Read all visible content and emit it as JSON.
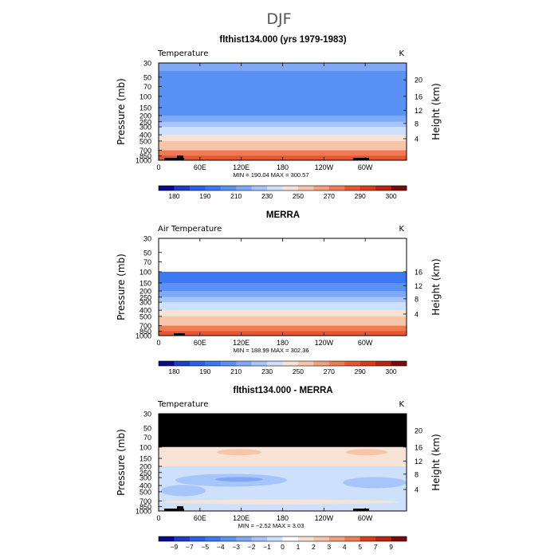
{
  "page_title": "DJF",
  "chart_data": [
    {
      "type": "heatmap",
      "title": "flthist134.000 (yrs 1979-1983)",
      "left_label": "Temperature",
      "right_label": "K",
      "ylabel": "Pressure (mb)",
      "ylabel_right": "Height (km)",
      "x_ticks": [
        "0",
        "60E",
        "120E",
        "180",
        "120W",
        "60W"
      ],
      "y_ticks": [
        "30",
        "50",
        "70",
        "100",
        "150",
        "200",
        "250",
        "300",
        "400",
        "500",
        "700",
        "850",
        "1000"
      ],
      "height_ticks": [
        "20",
        "16",
        "12",
        "8",
        "4"
      ],
      "minmax": "MIN = 190.04   MAX = 300.57",
      "colorbar_labels": [
        "180",
        "190",
        "210",
        "230",
        "250",
        "270",
        "290",
        "300"
      ],
      "colors": [
        "#0a0a8c",
        "#1e3cc8",
        "#2b5fe6",
        "#3c78f0",
        "#5a91f5",
        "#7fa9f7",
        "#a7c5fa",
        "#cde0fc",
        "#f7e3d5",
        "#f8c5aa",
        "#f5a07c",
        "#f07a52",
        "#e8552e",
        "#d93c18",
        "#b82410",
        "#7a0c08"
      ],
      "bands": [
        {
          "p": 30,
          "temp": 212
        },
        {
          "p": 40,
          "temp": 208
        },
        {
          "p": 50,
          "temp": 205
        },
        {
          "p": 70,
          "temp": 203
        },
        {
          "p": 100,
          "temp": 204
        },
        {
          "p": 150,
          "temp": 207
        },
        {
          "p": 200,
          "temp": 215
        },
        {
          "p": 250,
          "temp": 224
        },
        {
          "p": 300,
          "temp": 233
        },
        {
          "p": 400,
          "temp": 246
        },
        {
          "p": 500,
          "temp": 256
        },
        {
          "p": 700,
          "temp": 271
        },
        {
          "p": 850,
          "temp": 282
        },
        {
          "p": 1000,
          "temp": 292
        }
      ]
    },
    {
      "type": "heatmap",
      "title": "MERRA",
      "left_label": "Air Temperature",
      "right_label": "K",
      "ylabel": "Pressure (mb)",
      "ylabel_right": "Height (km)",
      "x_ticks": [
        "0",
        "60E",
        "120E",
        "180",
        "120W",
        "60W"
      ],
      "y_ticks": [
        "30",
        "50",
        "70",
        "100",
        "150",
        "200",
        "250",
        "300",
        "400",
        "500",
        "700",
        "850",
        "1000"
      ],
      "height_ticks": [
        "16",
        "12",
        "8",
        "4"
      ],
      "minmax": "MIN = 188.99   MAX = 302.36",
      "colorbar_labels": [
        "180",
        "190",
        "210",
        "230",
        "250",
        "270",
        "290",
        "300"
      ],
      "bands": [
        {
          "p": 100,
          "temp": 200
        },
        {
          "p": 150,
          "temp": 206
        },
        {
          "p": 200,
          "temp": 214
        },
        {
          "p": 250,
          "temp": 223
        },
        {
          "p": 300,
          "temp": 232
        },
        {
          "p": 400,
          "temp": 245
        },
        {
          "p": 500,
          "temp": 256
        },
        {
          "p": 700,
          "temp": 271
        },
        {
          "p": 850,
          "temp": 283
        },
        {
          "p": 1000,
          "temp": 294
        }
      ]
    },
    {
      "type": "heatmap",
      "title": "flthist134.000 - MERRA",
      "left_label": "Temperature",
      "right_label": "K",
      "ylabel": "Pressure (mb)",
      "ylabel_right": "Height (km)",
      "x_ticks": [
        "0",
        "60E",
        "120E",
        "180",
        "120W",
        "60W"
      ],
      "y_ticks": [
        "30",
        "50",
        "70",
        "100",
        "150",
        "200",
        "250",
        "300",
        "400",
        "500",
        "700",
        "850",
        "1000"
      ],
      "height_ticks": [
        "20",
        "16",
        "12",
        "8",
        "4"
      ],
      "minmax": "MIN = −2.52   MAX =  3.03",
      "colorbar_labels": [
        "−9",
        "−7",
        "−5",
        "−4",
        "−3",
        "−2",
        "−1",
        "0",
        "1",
        "2",
        "3",
        "4",
        "5",
        "7",
        "9"
      ],
      "colors": [
        "#0a0a8c",
        "#1e3cc8",
        "#2b5fe6",
        "#3c78f0",
        "#5a91f5",
        "#7fa9f7",
        "#a7c5fa",
        "#cde0fc",
        "#ffffff",
        "#f7e3d5",
        "#f8c5aa",
        "#f5a07c",
        "#f07a52",
        "#d93c18",
        "#b82410",
        "#7a0c08"
      ],
      "missing_above_mb": 100
    }
  ]
}
